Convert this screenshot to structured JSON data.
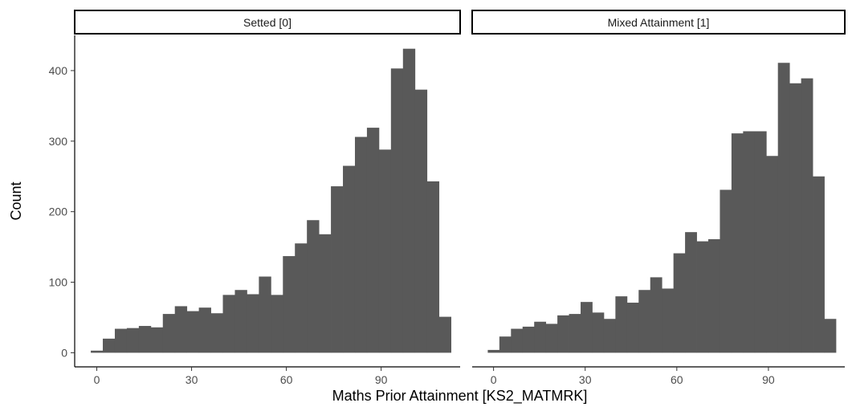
{
  "chart_data": {
    "type": "bar",
    "subtype": "faceted-histogram",
    "xlabel": "Maths Prior Attainment [KS2_MATMRK]",
    "ylabel": "Count",
    "xlim": [
      -7,
      115
    ],
    "ylim": [
      -20,
      450
    ],
    "x_ticks": [
      0,
      30,
      60,
      90
    ],
    "y_ticks": [
      0,
      100,
      200,
      300,
      400
    ],
    "bin_start": -1.9,
    "bin_width": 3.8,
    "bar_color": "#595959",
    "facets": [
      {
        "label": "Setted [0]",
        "values": [
          3,
          20,
          34,
          35,
          38,
          36,
          55,
          66,
          59,
          64,
          56,
          82,
          89,
          83,
          108,
          82,
          137,
          155,
          188,
          168,
          236,
          265,
          306,
          319,
          288,
          403,
          431,
          373,
          243,
          51
        ]
      },
      {
        "label": "Mixed Attainment [1]",
        "values": [
          4,
          23,
          34,
          37,
          44,
          41,
          53,
          55,
          72,
          57,
          48,
          80,
          71,
          89,
          107,
          91,
          141,
          171,
          158,
          161,
          231,
          311,
          314,
          314,
          279,
          411,
          382,
          389,
          250,
          48
        ]
      }
    ]
  }
}
